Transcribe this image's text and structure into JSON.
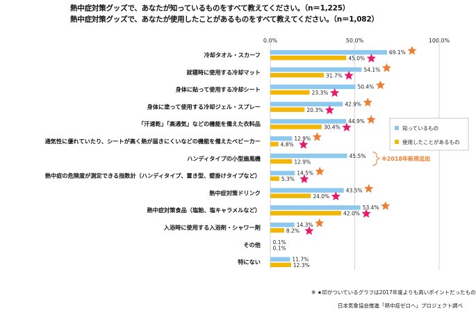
{
  "titles": [
    "熱中症対策グッズで、あなたが知っているものをすべて教えてください。（n＝1,225）",
    "熱中症対策グッズで、あなたが使用したことがあるものをすべて教えてください。（n＝1,082）"
  ],
  "colors": {
    "know": "#8dc8ee",
    "used": "#f2b705",
    "star_orange": "#ed7d31",
    "star_pink": "#e8196a",
    "note_orange": "#ed7d31",
    "grid": "#c8c8c8"
  },
  "chart_data": {
    "type": "bar",
    "orientation": "horizontal",
    "xlim": [
      0,
      100
    ],
    "x_ticks": [
      "0.0%",
      "50.0%",
      "100.0%"
    ],
    "grid": true,
    "legend_position": "right",
    "series": [
      {
        "name": "知っているもの",
        "values": [
          69.1,
          54.1,
          50.4,
          42.9,
          44.9,
          12.9,
          45.5,
          14.5,
          43.5,
          53.4,
          14.3,
          0.1,
          11.7
        ],
        "labels": [
          "69.1%",
          "54.1%",
          "50.4%",
          "42.9%",
          "44.9%",
          "12.9%",
          "45.5%",
          "14.5%",
          "43.5%",
          "53.4%",
          "14.3%",
          "0.1%",
          "11.7%"
        ],
        "star": [
          true,
          true,
          true,
          true,
          true,
          true,
          false,
          true,
          true,
          true,
          true,
          false,
          false
        ]
      },
      {
        "name": "使用したことがあるもの",
        "values": [
          45.0,
          31.7,
          23.3,
          20.3,
          30.4,
          4.8,
          12.9,
          5.3,
          24.0,
          42.0,
          8.2,
          0.1,
          12.3
        ],
        "labels": [
          "45.0%",
          "31.7%",
          "23.3%",
          "20.3%",
          "30.4%",
          "4.8%",
          "12.9%",
          "5.3%",
          "24.0%",
          "42.0%",
          "8.2%",
          "0.1%",
          "12.3%"
        ],
        "star": [
          true,
          true,
          true,
          true,
          true,
          true,
          false,
          true,
          true,
          true,
          true,
          false,
          false
        ]
      }
    ],
    "categories": [
      "冷却タオル・スカーフ",
      "就寝時に使用する冷却マット",
      "身体に貼って使用する冷却シート",
      "身体に塗って使用する冷却ジェル・スプレー",
      "「汗速乾」「高通気」などの機能を備えた衣料品",
      "通気性に優れていたり、シートが高く熱が届きにくいなどの機能を備えたベビーカー",
      "ハンディタイプの小型扇風機",
      "熱中症の危険度が測定できる指数計（ハンディタイプ、置き型、壁掛けタイプなど）",
      "熱中症対策ドリンク",
      "熱中症対策食品（塩飴、塩キャラメルなど）",
      "入浴時に使用する入浴剤・シャワー剤",
      "その他",
      "特にない"
    ],
    "annotation": "※2018年新規追加",
    "annotation_category_index": 6
  },
  "note": "※ ★印がついているグラフは2017年度よりも高いポイントだったもの",
  "source": "日本気象協会推進「熱中症ゼロへ」プロジェクト調べ"
}
